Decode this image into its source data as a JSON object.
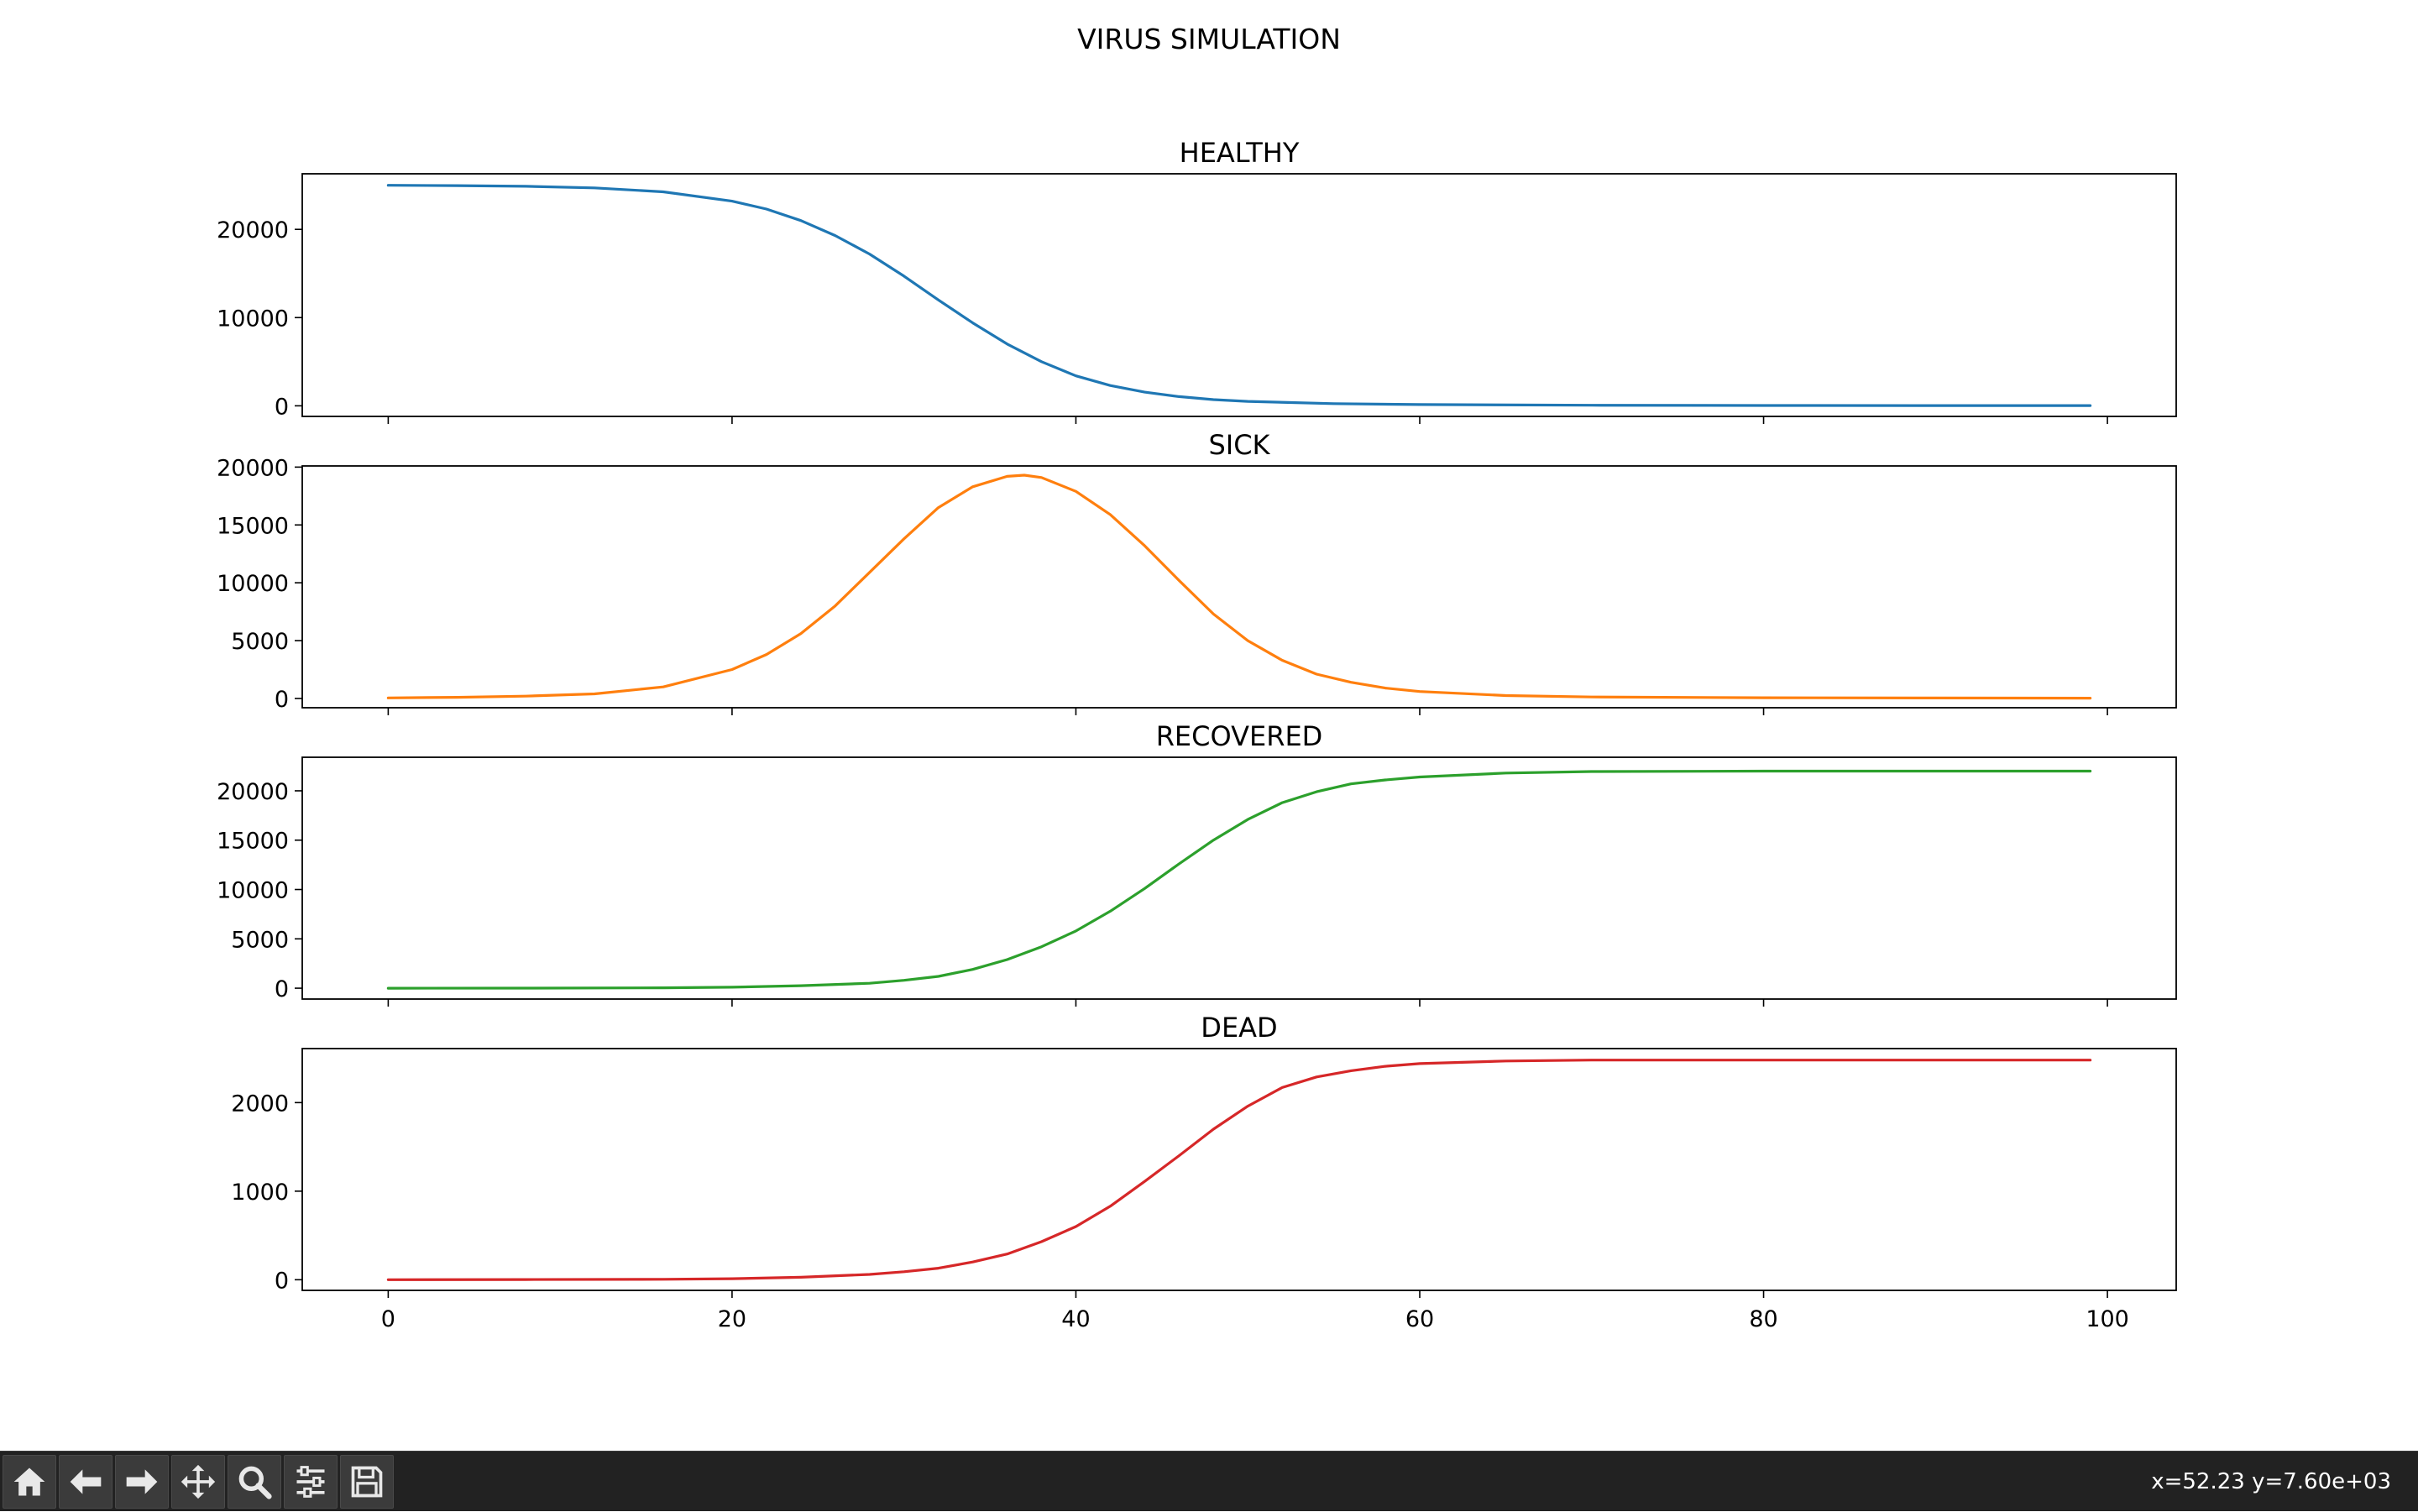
{
  "figure": {
    "title": "VIRUS SIMULATION"
  },
  "toolbar": {
    "buttons": [
      {
        "name": "home-button",
        "icon": "home-icon"
      },
      {
        "name": "back-button",
        "icon": "arrow-left-icon"
      },
      {
        "name": "forward-button",
        "icon": "arrow-right-icon"
      },
      {
        "name": "pan-button",
        "icon": "move-icon"
      },
      {
        "name": "zoom-button",
        "icon": "magnifier-icon"
      },
      {
        "name": "configure-subplots-button",
        "icon": "sliders-icon"
      },
      {
        "name": "save-button",
        "icon": "floppy-disk-icon"
      }
    ],
    "coords_text": "x=52.23 y=7.60e+03"
  },
  "chart_data": [
    {
      "type": "line",
      "title": "HEALTHY",
      "color": "#1f77b4",
      "xlim": [
        -5,
        104
      ],
      "ylim": [
        -1200,
        26300
      ],
      "xticks": [
        0,
        20,
        40,
        60,
        80,
        100
      ],
      "yticks": [
        0,
        10000,
        20000
      ],
      "x": [
        0,
        4,
        8,
        12,
        16,
        20,
        22,
        24,
        26,
        28,
        30,
        32,
        34,
        36,
        38,
        40,
        42,
        44,
        46,
        48,
        50,
        55,
        60,
        70,
        80,
        90,
        99
      ],
      "y": [
        25000,
        24960,
        24880,
        24700,
        24250,
        23200,
        22300,
        21000,
        19300,
        17200,
        14700,
        12000,
        9400,
        7000,
        5000,
        3400,
        2300,
        1550,
        1050,
        700,
        500,
        250,
        140,
        70,
        40,
        30,
        25
      ]
    },
    {
      "type": "line",
      "title": "SICK",
      "color": "#ff7f0e",
      "xlim": [
        -5,
        104
      ],
      "ylim": [
        -800,
        20100
      ],
      "xticks": [
        0,
        20,
        40,
        60,
        80,
        100
      ],
      "yticks": [
        0,
        5000,
        10000,
        15000,
        20000
      ],
      "x": [
        0,
        4,
        8,
        12,
        16,
        20,
        22,
        24,
        26,
        28,
        30,
        32,
        34,
        36,
        37,
        38,
        40,
        42,
        44,
        46,
        48,
        50,
        52,
        54,
        56,
        58,
        60,
        65,
        70,
        80,
        90,
        99
      ],
      "y": [
        50,
        100,
        200,
        400,
        1000,
        2500,
        3800,
        5600,
        8000,
        10900,
        13800,
        16500,
        18300,
        19200,
        19300,
        19100,
        17900,
        15900,
        13200,
        10200,
        7300,
        5000,
        3300,
        2100,
        1400,
        900,
        600,
        250,
        130,
        60,
        40,
        30
      ]
    },
    {
      "type": "line",
      "title": "RECOVERED",
      "color": "#2ca02c",
      "xlim": [
        -5,
        104
      ],
      "ylim": [
        -1100,
        23400
      ],
      "xticks": [
        0,
        20,
        40,
        60,
        80,
        100
      ],
      "yticks": [
        0,
        5000,
        10000,
        15000,
        20000
      ],
      "x": [
        0,
        8,
        16,
        20,
        24,
        28,
        30,
        32,
        34,
        36,
        38,
        40,
        42,
        44,
        46,
        48,
        50,
        52,
        54,
        56,
        58,
        60,
        65,
        70,
        80,
        99
      ],
      "y": [
        0,
        10,
        40,
        100,
        250,
        500,
        800,
        1200,
        1900,
        2900,
        4200,
        5800,
        7800,
        10100,
        12600,
        15000,
        17100,
        18800,
        19900,
        20700,
        21100,
        21400,
        21800,
        21950,
        22000,
        22000
      ]
    },
    {
      "type": "line",
      "title": "DEAD",
      "color": "#d62728",
      "xlim": [
        -5,
        104
      ],
      "ylim": [
        -120,
        2610
      ],
      "xticks": [
        0,
        20,
        40,
        60,
        80,
        100
      ],
      "yticks": [
        0,
        1000,
        2000
      ],
      "x": [
        0,
        8,
        16,
        20,
        24,
        28,
        30,
        32,
        34,
        36,
        38,
        40,
        42,
        44,
        46,
        48,
        50,
        52,
        54,
        56,
        58,
        60,
        65,
        70,
        80,
        99
      ],
      "y": [
        0,
        2,
        5,
        12,
        28,
        60,
        90,
        130,
        200,
        290,
        430,
        600,
        830,
        1110,
        1400,
        1700,
        1960,
        2170,
        2290,
        2360,
        2410,
        2440,
        2470,
        2480,
        2480,
        2480
      ]
    }
  ]
}
